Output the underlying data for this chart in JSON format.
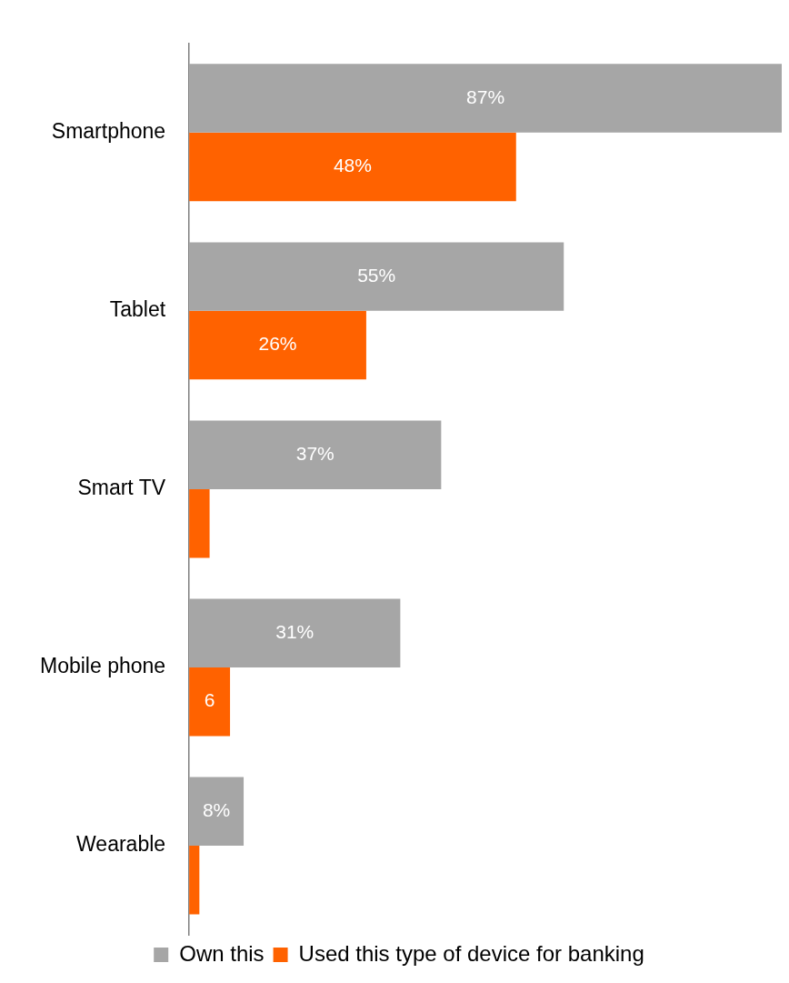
{
  "chart_data": {
    "type": "bar",
    "orientation": "horizontal",
    "categories": [
      "Smartphone",
      "Tablet",
      "Smart TV",
      "Mobile phone",
      "Wearable"
    ],
    "series": [
      {
        "name": "Own this",
        "color": "#a6a6a6",
        "values": [
          87,
          55,
          37,
          31,
          8
        ],
        "value_labels": [
          "87%",
          "55%",
          "37%",
          "31%",
          "8%"
        ]
      },
      {
        "name": "Used this type of device for banking",
        "color": "#ff6200",
        "values": [
          48,
          26,
          3,
          6,
          1.5
        ],
        "value_labels": [
          "48%",
          "26%",
          null,
          "6",
          null
        ]
      }
    ],
    "legend": "bottom"
  }
}
